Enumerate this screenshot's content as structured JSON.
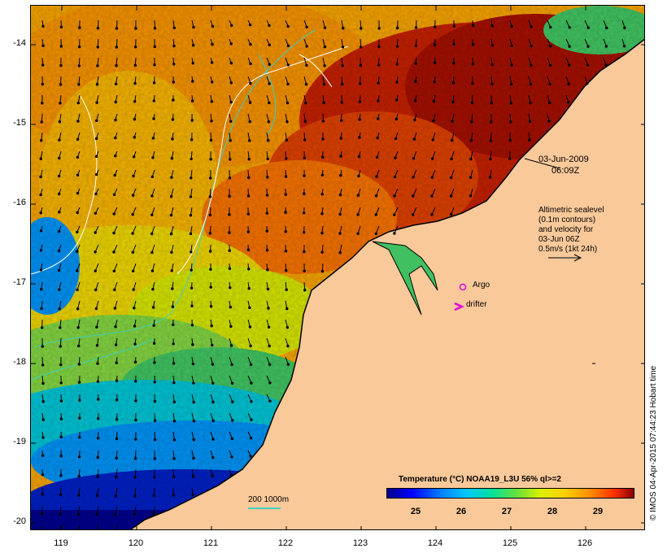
{
  "map": {
    "y_axis_labels": [
      "-14",
      "-15",
      "-16",
      "-17",
      "-18",
      "-19",
      "-20"
    ],
    "x_axis_labels": [
      "119",
      "120",
      "121",
      "122",
      "123",
      "124",
      "125",
      "126"
    ],
    "date_line1": "03-Jun-2009",
    "date_line2": "06:09Z",
    "altimetry_note": [
      "Altimetric sealevel",
      "(0.1m contours)",
      "and velocity for",
      "03-Jun 06Z",
      "0.5m/s (1kt 24h)"
    ],
    "argo_label": "Argo",
    "drifter_label": "drifter",
    "colorbar_title": "Temperature (°C) NOAA19_L3U 56% ql>=2",
    "colorbar_labels": [
      "25",
      "26",
      "27",
      "28",
      "29"
    ],
    "bathymetry_label": "200  1000m",
    "credit": "© IMOS 04-Apr-2015 07:44:23 Hobart time",
    "colors": {
      "land": "#f9c99a",
      "warm_core": "#a01000",
      "orange": "#f08000",
      "yellow": "#f0d000",
      "green": "#40c040",
      "cyan": "#00b0f0",
      "deep_blue": "#00008b",
      "argo_marker": "#e000e0",
      "bathymetry_line": "#40d0c0"
    },
    "icons": [
      "argo-circle-icon",
      "drifter-arrow-icon",
      "velocity-scale-arrow-icon"
    ]
  }
}
